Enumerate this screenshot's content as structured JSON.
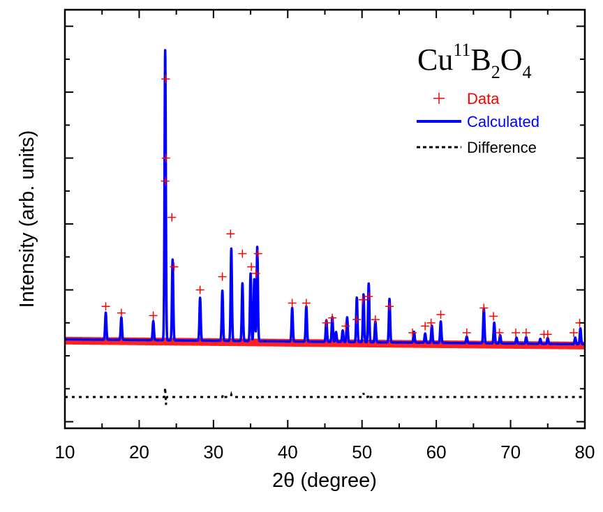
{
  "chart_data": {
    "type": "line",
    "title": "",
    "annotation": {
      "base": "Cu",
      "isotope": "11",
      "b": "B",
      "b_sub": "2",
      "o": "O",
      "o_sub": "4"
    },
    "xlabel": "2θ (degree)",
    "ylabel": "Intensity (arb. units)",
    "xlim": [
      10,
      80
    ],
    "ylim": [
      -0.27,
      1.0
    ],
    "xticks": [
      10,
      20,
      30,
      40,
      50,
      60,
      70,
      80
    ],
    "yticks_labeled": false,
    "grid": false,
    "legend_position": "top-right",
    "colors": {
      "data": "#ff0000",
      "calculated": "#0000ff",
      "difference": "#000000"
    },
    "series": [
      {
        "name": "Data",
        "style": "markers-plus",
        "x": [
          15.5,
          17.6,
          21.9,
          23.5,
          23.55,
          23.6,
          24.4,
          24.7,
          28.2,
          31.2,
          32.3,
          33.9,
          35.1,
          35.7,
          36.0,
          40.6,
          42.5,
          45.2,
          46.0,
          47.8,
          49.3,
          50.1,
          50.9,
          51.8,
          53.7,
          56.8,
          58.5,
          59.3,
          60.6,
          64.1,
          66.4,
          67.7,
          68.5,
          70.7,
          72.1,
          74.5,
          75.0,
          78.5,
          79.3
        ],
        "y": [
          0.1,
          0.08,
          0.072,
          0.48,
          0.79,
          0.55,
          0.37,
          0.22,
          0.15,
          0.19,
          0.32,
          0.26,
          0.22,
          0.2,
          0.26,
          0.11,
          0.11,
          0.05,
          0.065,
          0.04,
          0.06,
          0.12,
          0.13,
          0.06,
          0.1,
          0.02,
          0.04,
          0.05,
          0.075,
          0.02,
          0.095,
          0.07,
          0.02,
          0.02,
          0.02,
          0.015,
          0.015,
          0.02,
          0.05
        ]
      },
      {
        "name": "Calculated",
        "style": "line",
        "peaks": [
          {
            "x": 15.5,
            "h": 0.082
          },
          {
            "x": 17.6,
            "h": 0.068
          },
          {
            "x": 21.9,
            "h": 0.058
          },
          {
            "x": 23.5,
            "h": 0.88
          },
          {
            "x": 24.5,
            "h": 0.245
          },
          {
            "x": 28.2,
            "h": 0.13
          },
          {
            "x": 31.2,
            "h": 0.152
          },
          {
            "x": 32.4,
            "h": 0.28
          },
          {
            "x": 33.9,
            "h": 0.175
          },
          {
            "x": 35.0,
            "h": 0.205
          },
          {
            "x": 35.5,
            "h": 0.188
          },
          {
            "x": 35.9,
            "h": 0.286
          },
          {
            "x": 40.6,
            "h": 0.102
          },
          {
            "x": 42.5,
            "h": 0.107
          },
          {
            "x": 45.2,
            "h": 0.065
          },
          {
            "x": 46.0,
            "h": 0.075
          },
          {
            "x": 46.5,
            "h": 0.03
          },
          {
            "x": 47.4,
            "h": 0.035
          },
          {
            "x": 48.0,
            "h": 0.075
          },
          {
            "x": 49.3,
            "h": 0.135
          },
          {
            "x": 50.2,
            "h": 0.145
          },
          {
            "x": 50.9,
            "h": 0.178
          },
          {
            "x": 51.8,
            "h": 0.063
          },
          {
            "x": 53.7,
            "h": 0.132
          },
          {
            "x": 57.0,
            "h": 0.033
          },
          {
            "x": 58.5,
            "h": 0.028
          },
          {
            "x": 59.4,
            "h": 0.052
          },
          {
            "x": 60.6,
            "h": 0.065
          },
          {
            "x": 64.1,
            "h": 0.02
          },
          {
            "x": 66.4,
            "h": 0.104
          },
          {
            "x": 67.8,
            "h": 0.063
          },
          {
            "x": 68.6,
            "h": 0.025
          },
          {
            "x": 70.8,
            "h": 0.018
          },
          {
            "x": 72.1,
            "h": 0.02
          },
          {
            "x": 74.0,
            "h": 0.015
          },
          {
            "x": 75.0,
            "h": 0.018
          },
          {
            "x": 78.7,
            "h": 0.02
          },
          {
            "x": 79.4,
            "h": 0.048
          }
        ],
        "baseline": [
          {
            "x": 10,
            "y": 0.0
          },
          {
            "x": 80,
            "y": -0.015
          }
        ]
      },
      {
        "name": "Difference",
        "style": "dotted",
        "offset": -0.175,
        "features": [
          {
            "x": 23.5,
            "dy": 0.03
          },
          {
            "x": 23.6,
            "dy": -0.025
          },
          {
            "x": 31.3,
            "dy": 0.008
          },
          {
            "x": 32.4,
            "dy": 0.007
          },
          {
            "x": 36.0,
            "dy": -0.005
          },
          {
            "x": 50.2,
            "dy": 0.012
          },
          {
            "x": 50.9,
            "dy": 0.008
          }
        ]
      }
    ]
  }
}
